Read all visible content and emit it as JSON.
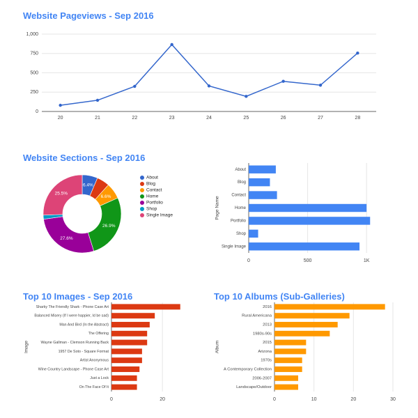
{
  "titles": {
    "pageviews": "Website Pageviews - Sep 2016",
    "sections": "Website Sections - Sep 2016",
    "images": "Top 10 Images - Sep 2016",
    "albums": "Top 10 Albums (Sub-Galleries)"
  },
  "colors": {
    "title": "#4285f4",
    "line": "#3366cc",
    "bars_sections": "#4285f4",
    "bars_images": "#dc3912",
    "bars_albums": "#ff9900",
    "grid": "#e6e6e6",
    "axis_text": "#444444"
  },
  "chart_data": [
    {
      "id": "pageviews",
      "type": "line",
      "title": "Website Pageviews - Sep 2016",
      "x": [
        20,
        21,
        22,
        23,
        24,
        25,
        26,
        27,
        28
      ],
      "series": [
        {
          "values": [
            80,
            145,
            325,
            865,
            330,
            195,
            390,
            340,
            755
          ]
        }
      ],
      "ylim": [
        0,
        1000
      ],
      "yticks": [
        "0",
        "250",
        "500",
        "750",
        "1,000"
      ],
      "ytick_values": [
        0,
        250,
        500,
        750,
        1000
      ],
      "grid": true
    },
    {
      "id": "sections_pie",
      "type": "pie",
      "title": "Website Sections - Sep 2016",
      "donut": true,
      "slices": [
        {
          "label": "About",
          "value": 6.4,
          "color": "#3366cc",
          "text": "6.4%"
        },
        {
          "label": "Blog",
          "value": 5.3,
          "color": "#dc3912",
          "text": ""
        },
        {
          "label": "Contact",
          "value": 6.6,
          "color": "#ff9900",
          "text": "6.6%"
        },
        {
          "label": "Home",
          "value": 26.9,
          "color": "#109618",
          "text": "26.9%"
        },
        {
          "label": "Portfolio",
          "value": 27.6,
          "color": "#990099",
          "text": "27.6%"
        },
        {
          "label": "Shop",
          "value": 1.7,
          "color": "#0099c6",
          "text": ""
        },
        {
          "label": "Single Image",
          "value": 25.5,
          "color": "#dd4477",
          "text": "25.5%"
        }
      ],
      "legend": "right"
    },
    {
      "id": "sections_bar",
      "type": "bar",
      "orientation": "horizontal",
      "categories": [
        "About",
        "Blog",
        "Contact",
        "Home",
        "Portfolio",
        "Shop",
        "Single Image"
      ],
      "values": [
        230,
        180,
        240,
        1000,
        1030,
        80,
        940
      ],
      "ylabel": "Page Name",
      "xlim": [
        0,
        1200
      ],
      "xticks": [
        "0",
        "500",
        "1K"
      ],
      "xtick_values": [
        0,
        500,
        1000
      ],
      "grid": true
    },
    {
      "id": "images_bar",
      "type": "bar",
      "orientation": "horizontal",
      "title": "Top 10 Images - Sep 2016",
      "categories": [
        "Sharky The Friendly Shark - Phone Case Art",
        "Balanced Misery (If I were happier, Id be sad)",
        "Man And Bird (In the Abstract)",
        "The Offering",
        "Wayne Gallman - Clemson Running Back",
        "1957 De Soto - Square Format",
        "Artist Anonymous",
        "Wine Country Landscape - Phone Case Art",
        "Just a Lock",
        "On The Face Of It"
      ],
      "values": [
        27,
        17,
        15,
        14,
        14,
        12,
        12,
        11,
        10,
        10
      ],
      "ylabel": "Image",
      "xlim": [
        0,
        35
      ],
      "xticks": [
        "0",
        "20"
      ],
      "xtick_values": [
        0,
        20
      ],
      "grid": true
    },
    {
      "id": "albums_bar",
      "type": "bar",
      "orientation": "horizontal",
      "title": "Top 10 Albums (Sub-Galleries)",
      "categories": [
        "2016",
        "Rural Americana",
        "2013",
        "1980s-90s",
        "2015",
        "Arizona",
        "1970s",
        "A Contemporary Collection",
        "2006-2007",
        "Landscape/Outdoor"
      ],
      "values": [
        28,
        19,
        16,
        14,
        8,
        8,
        7,
        7,
        6,
        6
      ],
      "ylabel": "Album",
      "xlim": [
        0,
        30
      ],
      "xticks": [
        "0",
        "10",
        "20",
        "30"
      ],
      "xtick_values": [
        0,
        10,
        20,
        30
      ],
      "grid": true
    }
  ]
}
